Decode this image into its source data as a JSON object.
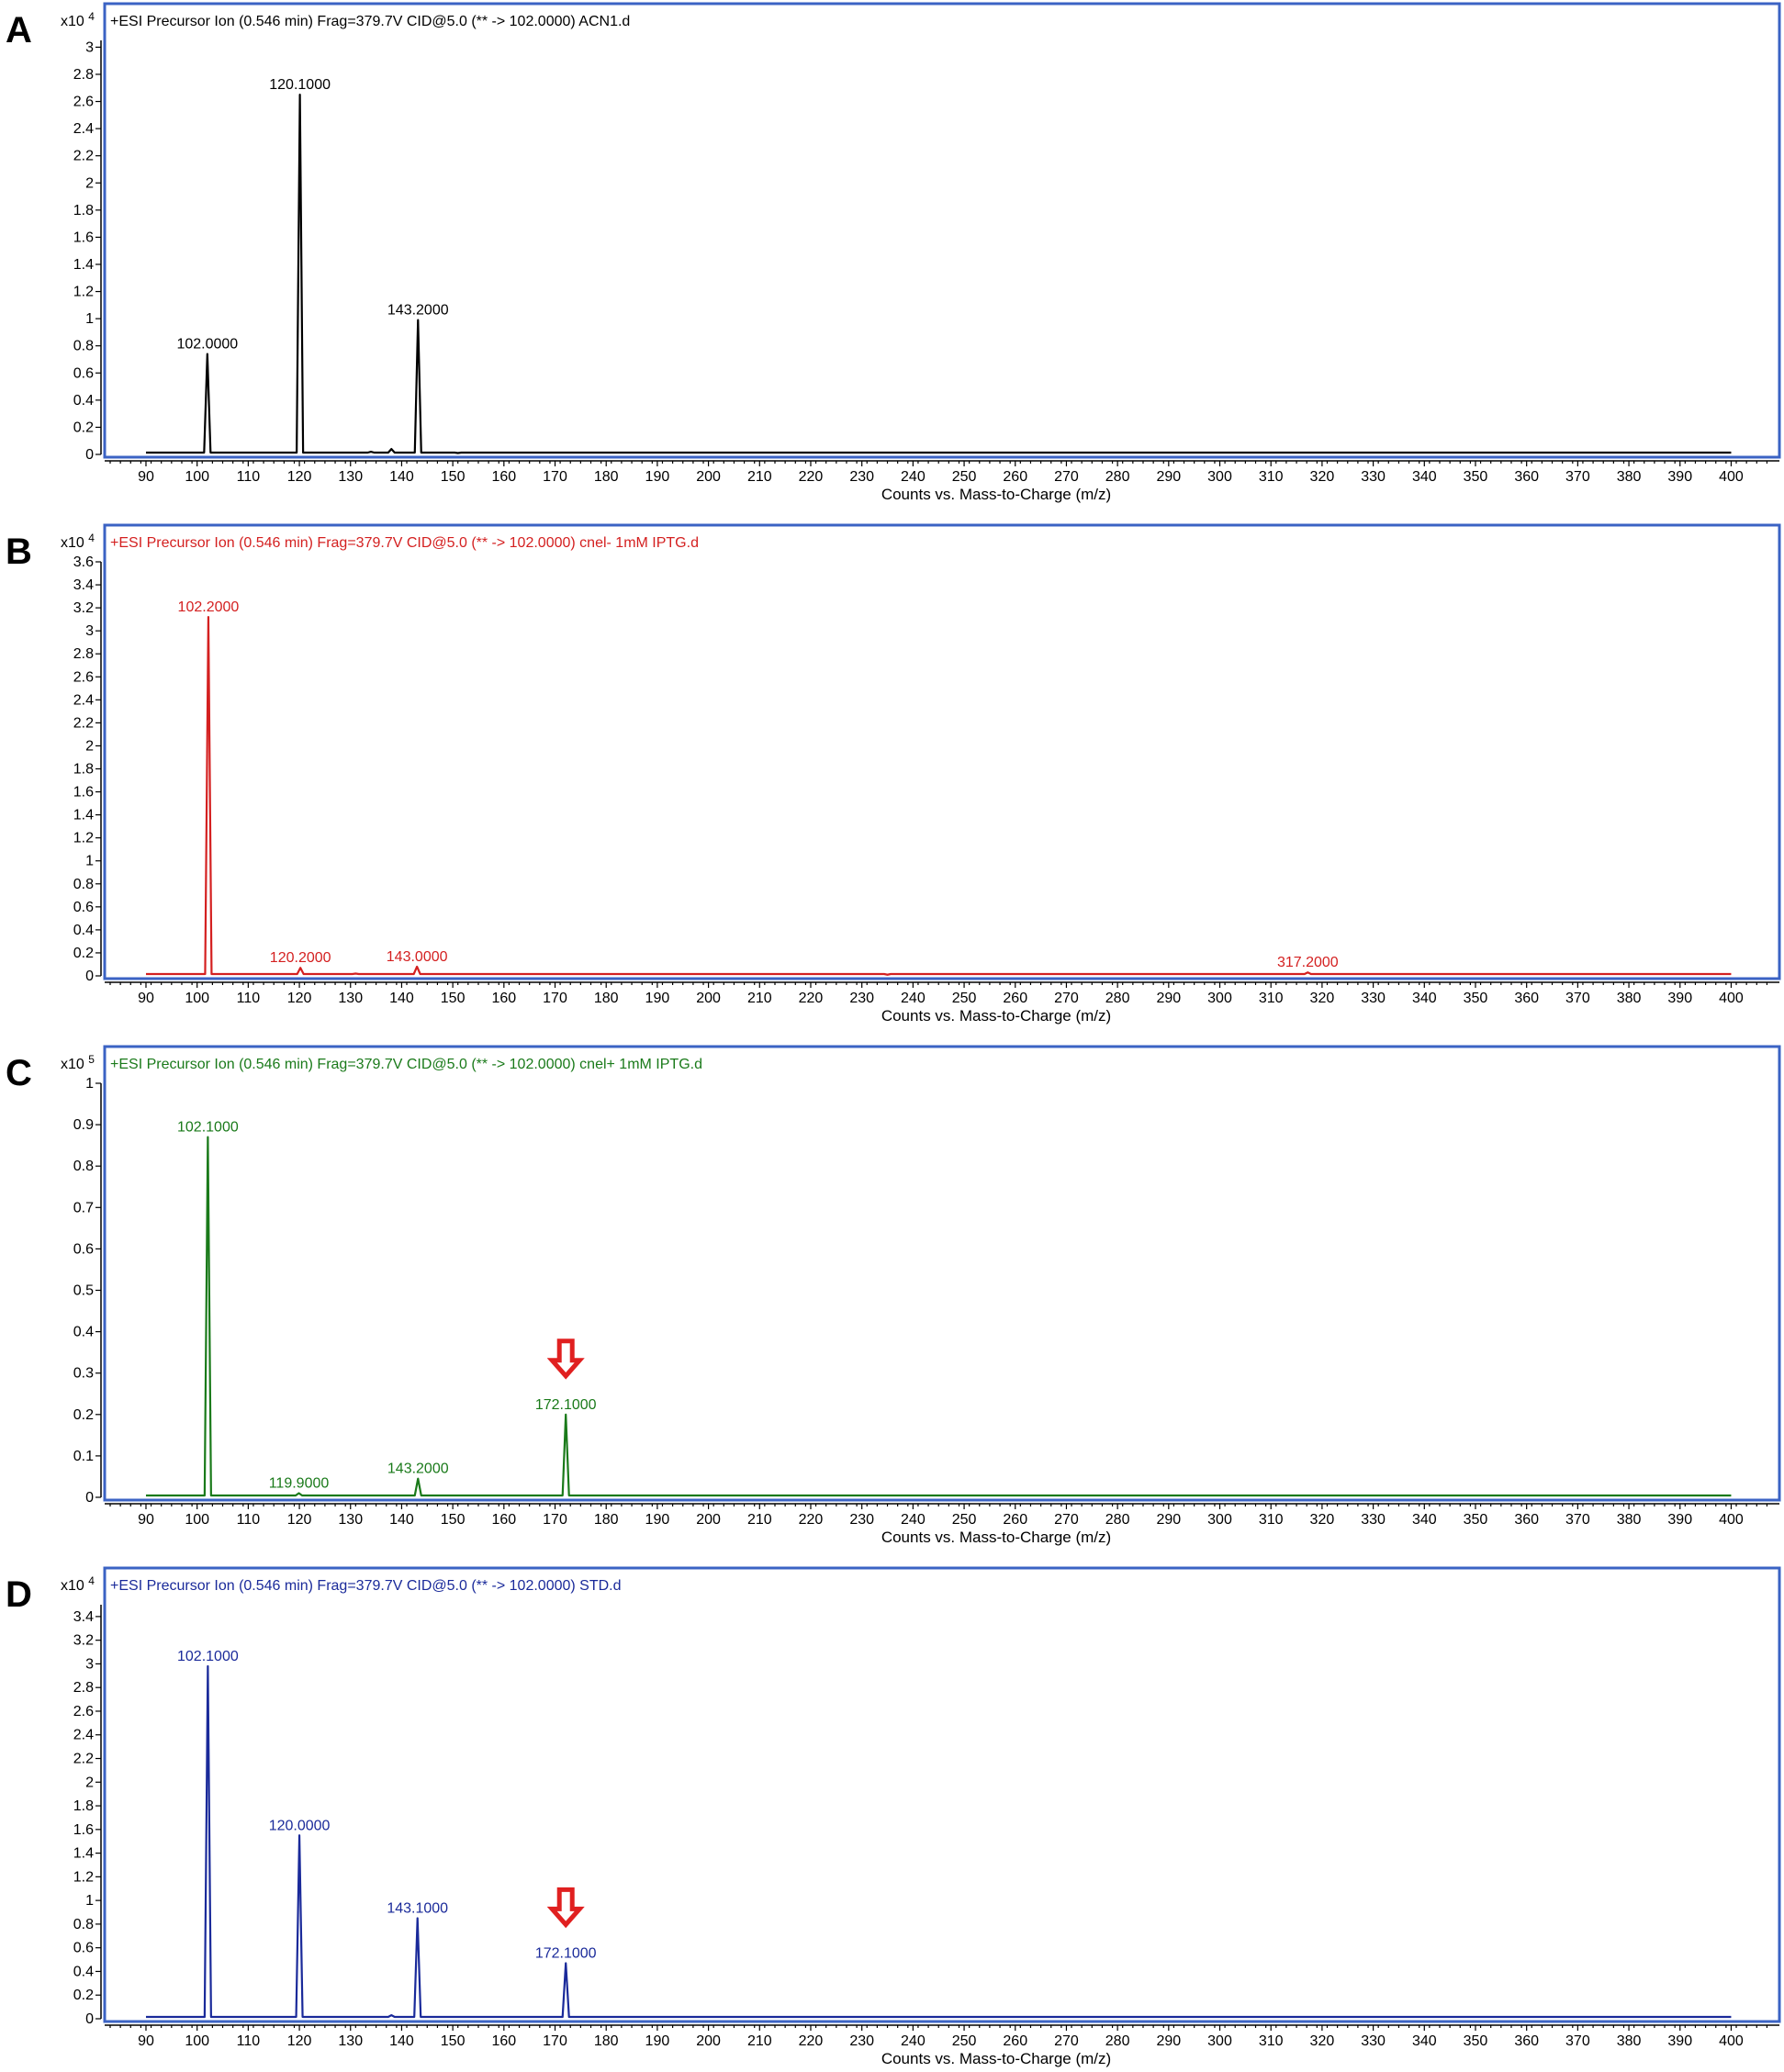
{
  "chart_data": [
    {
      "type": "line",
      "panel": "A",
      "header": "+ESI Precursor Ion (0.546 min) Frag=379.7V CID@5.0 (** -> 102.0000) ACN1.d",
      "scale": "x10 4",
      "xlabel": "Counts vs. Mass-to-Charge (m/z)",
      "xlim": [
        83,
        408
      ],
      "xticks": [
        90,
        100,
        110,
        120,
        130,
        140,
        150,
        160,
        170,
        180,
        190,
        200,
        210,
        220,
        230,
        240,
        250,
        260,
        270,
        280,
        290,
        300,
        310,
        320,
        330,
        340,
        350,
        360,
        370,
        380,
        390,
        400
      ],
      "ylim": [
        0,
        3.05
      ],
      "yticks": [
        0,
        0.2,
        0.4,
        0.6,
        0.8,
        1,
        1.2,
        1.4,
        1.6,
        1.8,
        2,
        2.2,
        2.4,
        2.6,
        2.8,
        3
      ],
      "ytick_labels": [
        "0",
        "0.2",
        "0.4",
        "0.6",
        "0.8",
        "1",
        "1.2",
        "1.4",
        "1.6",
        "1.8",
        "2",
        "2.2",
        "2.4",
        "2.6",
        "2.8",
        "3"
      ],
      "color": "#000000",
      "peaks": [
        {
          "mz": 102.0,
          "intensity": 0.74,
          "label": "102.0000"
        },
        {
          "mz": 120.1,
          "intensity": 2.65,
          "label": "120.1000"
        },
        {
          "mz": 143.2,
          "intensity": 0.99,
          "label": "143.2000"
        },
        {
          "mz": 138.0,
          "intensity": 0.04,
          "label": ""
        },
        {
          "mz": 134.0,
          "intensity": 0.02,
          "label": ""
        },
        {
          "mz": 151.0,
          "intensity": 0.01,
          "label": ""
        }
      ],
      "arrows": []
    },
    {
      "type": "line",
      "panel": "B",
      "header": "+ESI Precursor Ion (0.546 min) Frag=379.7V CID@5.0 (** -> 102.0000) cnel- 1mM IPTG.d",
      "scale": "x10 4",
      "xlabel": "Counts vs. Mass-to-Charge (m/z)",
      "xlim": [
        83,
        408
      ],
      "xticks": [
        90,
        100,
        110,
        120,
        130,
        140,
        150,
        160,
        170,
        180,
        190,
        200,
        210,
        220,
        230,
        240,
        250,
        260,
        270,
        280,
        290,
        300,
        310,
        320,
        330,
        340,
        350,
        360,
        370,
        380,
        390,
        400
      ],
      "ylim": [
        0,
        3.6
      ],
      "yticks": [
        0,
        0.2,
        0.4,
        0.6,
        0.8,
        1,
        1.2,
        1.4,
        1.6,
        1.8,
        2,
        2.2,
        2.4,
        2.6,
        2.8,
        3,
        3.2,
        3.4,
        3.6
      ],
      "ytick_labels": [
        "0",
        "0.2",
        "0.4",
        "0.6",
        "0.8",
        "1",
        "1.2",
        "1.4",
        "1.6",
        "1.8",
        "2",
        "2.2",
        "2.4",
        "2.6",
        "2.8",
        "3",
        "3.2",
        "3.4",
        "3.6"
      ],
      "color": "#d42020",
      "peaks": [
        {
          "mz": 102.2,
          "intensity": 3.12,
          "label": "102.2000"
        },
        {
          "mz": 120.2,
          "intensity": 0.07,
          "label": "120.2000"
        },
        {
          "mz": 143.0,
          "intensity": 0.08,
          "label": "143.0000"
        },
        {
          "mz": 317.2,
          "intensity": 0.03,
          "label": "317.2000"
        },
        {
          "mz": 131.0,
          "intensity": 0.02,
          "label": ""
        },
        {
          "mz": 235.0,
          "intensity": 0.01,
          "label": ""
        }
      ],
      "arrows": []
    },
    {
      "type": "line",
      "panel": "C",
      "header": "+ESI Precursor Ion (0.546 min) Frag=379.7V CID@5.0 (** -> 102.0000) cnel+ 1mM IPTG.d",
      "scale": "x10 5",
      "xlabel": "Counts vs. Mass-to-Charge (m/z)",
      "xlim": [
        83,
        408
      ],
      "xticks": [
        90,
        100,
        110,
        120,
        130,
        140,
        150,
        160,
        170,
        180,
        190,
        200,
        210,
        220,
        230,
        240,
        250,
        260,
        270,
        280,
        290,
        300,
        310,
        320,
        330,
        340,
        350,
        360,
        370,
        380,
        390,
        400
      ],
      "ylim": [
        0,
        1.0
      ],
      "yticks": [
        0,
        0.1,
        0.2,
        0.3,
        0.4,
        0.5,
        0.6,
        0.7,
        0.8,
        0.9,
        1
      ],
      "ytick_labels": [
        "0",
        "0.1",
        "0.2",
        "0.3",
        "0.4",
        "0.5",
        "0.6",
        "0.7",
        "0.8",
        "0.9",
        "1"
      ],
      "color": "#1a7a1a",
      "peaks": [
        {
          "mz": 102.1,
          "intensity": 0.87,
          "label": "102.1000"
        },
        {
          "mz": 119.9,
          "intensity": 0.01,
          "label": "119.9000"
        },
        {
          "mz": 143.2,
          "intensity": 0.045,
          "label": "143.2000"
        },
        {
          "mz": 172.1,
          "intensity": 0.2,
          "label": "172.1000"
        }
      ],
      "arrows": [
        {
          "mz": 172.1
        }
      ]
    },
    {
      "type": "line",
      "panel": "D",
      "header": "+ESI Precursor Ion (0.546 min) Frag=379.7V CID@5.0 (** -> 102.0000) STD.d",
      "scale": "x10 4",
      "xlabel": "Counts vs. Mass-to-Charge (m/z)",
      "xlim": [
        83,
        408
      ],
      "xticks": [
        90,
        100,
        110,
        120,
        130,
        140,
        150,
        160,
        170,
        180,
        190,
        200,
        210,
        220,
        230,
        240,
        250,
        260,
        270,
        280,
        290,
        300,
        310,
        320,
        330,
        340,
        350,
        360,
        370,
        380,
        390,
        400
      ],
      "ylim": [
        0,
        3.5
      ],
      "yticks": [
        0,
        0.2,
        0.4,
        0.6,
        0.8,
        1,
        1.2,
        1.4,
        1.6,
        1.8,
        2,
        2.2,
        2.4,
        2.6,
        2.8,
        3,
        3.2,
        3.4
      ],
      "ytick_labels": [
        "0",
        "0.2",
        "0.4",
        "0.6",
        "0.8",
        "1",
        "1.2",
        "1.4",
        "1.6",
        "1.8",
        "2",
        "2.2",
        "2.4",
        "2.6",
        "2.8",
        "3",
        "3.2",
        "3.4"
      ],
      "color": "#1a2a9a",
      "peaks": [
        {
          "mz": 102.1,
          "intensity": 2.98,
          "label": "102.1000"
        },
        {
          "mz": 120.0,
          "intensity": 1.55,
          "label": "120.0000"
        },
        {
          "mz": 143.1,
          "intensity": 0.85,
          "label": "143.1000"
        },
        {
          "mz": 172.1,
          "intensity": 0.47,
          "label": "172.1000"
        },
        {
          "mz": 138.0,
          "intensity": 0.03,
          "label": ""
        }
      ],
      "arrows": [
        {
          "mz": 172.1
        }
      ]
    }
  ]
}
